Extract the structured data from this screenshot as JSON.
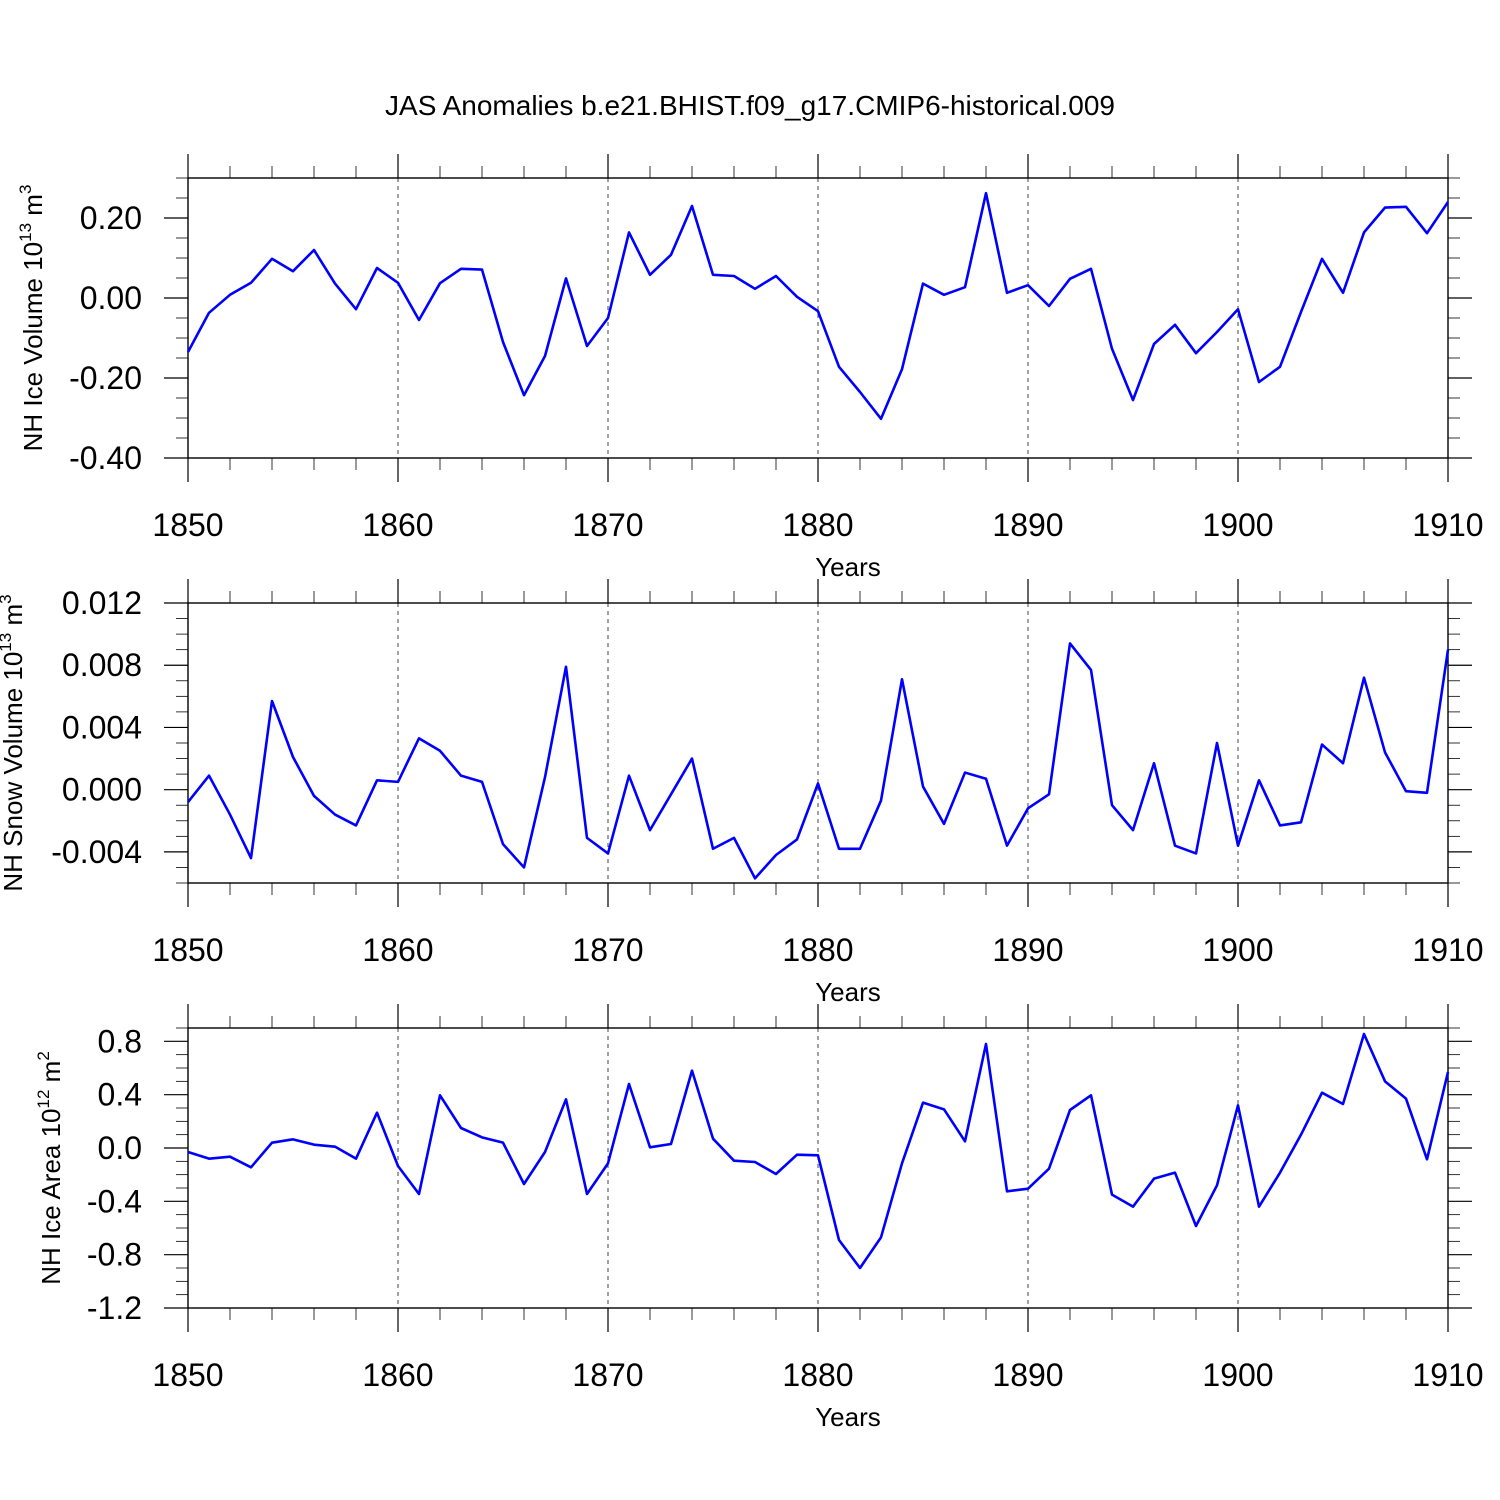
{
  "figure": {
    "title": "JAS Anomalies b.e21.BHIST.f09_g17.CMIP6-historical.009"
  },
  "chart_data": [
    {
      "type": "line",
      "id": "ice-volume",
      "title": "",
      "xlabel": "Years",
      "ylabel": "NH Ice Volume 10",
      "ylabel_sup": "13",
      "ylabel_unit": "m",
      "ylabel_unit_sup": "3",
      "xlim": [
        1850,
        1910
      ],
      "ylim": [
        -0.4,
        0.3
      ],
      "x_ticks": [
        1850,
        1860,
        1870,
        1880,
        1890,
        1900,
        1910
      ],
      "x_tick_labels": [
        "1850",
        "1860",
        "1870",
        "1880",
        "1890",
        "1900",
        "1910"
      ],
      "y_ticks": [
        -0.4,
        -0.2,
        0.0,
        0.2
      ],
      "y_tick_labels": [
        "-0.40",
        "-0.20",
        "0.00",
        "0.20"
      ],
      "y_minor_step": 0.05,
      "color": "#0000ff",
      "series": [
        {
          "name": "NH Ice Volume anomaly",
          "x": [
            1850,
            1851,
            1852,
            1853,
            1854,
            1855,
            1856,
            1857,
            1858,
            1859,
            1860,
            1861,
            1862,
            1863,
            1864,
            1865,
            1866,
            1867,
            1868,
            1869,
            1870,
            1871,
            1872,
            1873,
            1874,
            1875,
            1876,
            1877,
            1878,
            1879,
            1880,
            1881,
            1882,
            1883,
            1884,
            1885,
            1886,
            1887,
            1888,
            1889,
            1890,
            1891,
            1892,
            1893,
            1894,
            1895,
            1896,
            1897,
            1898,
            1899,
            1900,
            1901,
            1902,
            1903,
            1904,
            1905,
            1906,
            1907,
            1908,
            1909,
            1910
          ],
          "values": [
            -0.135,
            -0.037,
            0.008,
            0.038,
            0.098,
            0.067,
            0.12,
            0.036,
            -0.028,
            0.075,
            0.038,
            -0.055,
            0.037,
            0.073,
            0.071,
            -0.11,
            -0.243,
            -0.145,
            0.049,
            -0.12,
            -0.05,
            0.164,
            0.058,
            0.108,
            0.23,
            0.058,
            0.055,
            0.023,
            0.055,
            0.003,
            -0.033,
            -0.172,
            -0.235,
            -0.302,
            -0.178,
            0.036,
            0.008,
            0.027,
            0.262,
            0.013,
            0.032,
            -0.02,
            0.048,
            0.073,
            -0.127,
            -0.255,
            -0.115,
            -0.067,
            -0.138,
            -0.085,
            -0.028,
            -0.21,
            -0.172,
            -0.035,
            0.098,
            0.013,
            0.164,
            0.226,
            0.228,
            0.162,
            0.24
          ]
        }
      ]
    },
    {
      "type": "line",
      "id": "snow-volume",
      "title": "",
      "xlabel": "Years",
      "ylabel": "NH Snow Volume 10",
      "ylabel_sup": "13",
      "ylabel_unit": "m",
      "ylabel_unit_sup": "3",
      "xlim": [
        1850,
        1910
      ],
      "ylim": [
        -0.006,
        0.012
      ],
      "x_ticks": [
        1850,
        1860,
        1870,
        1880,
        1890,
        1900,
        1910
      ],
      "x_tick_labels": [
        "1850",
        "1860",
        "1870",
        "1880",
        "1890",
        "1900",
        "1910"
      ],
      "y_ticks": [
        -0.004,
        0.0,
        0.004,
        0.008,
        0.012
      ],
      "y_tick_labels": [
        "-0.004",
        "0.000",
        "0.004",
        "0.008",
        "0.012"
      ],
      "y_minor_step": 0.001,
      "color": "#0000ff",
      "series": [
        {
          "name": "NH Snow Volume anomaly",
          "x": [
            1850,
            1851,
            1852,
            1853,
            1854,
            1855,
            1856,
            1857,
            1858,
            1859,
            1860,
            1861,
            1862,
            1863,
            1864,
            1865,
            1866,
            1867,
            1868,
            1869,
            1870,
            1871,
            1872,
            1873,
            1874,
            1875,
            1876,
            1877,
            1878,
            1879,
            1880,
            1881,
            1882,
            1883,
            1884,
            1885,
            1886,
            1887,
            1888,
            1889,
            1890,
            1891,
            1892,
            1893,
            1894,
            1895,
            1896,
            1897,
            1898,
            1899,
            1900,
            1901,
            1902,
            1903,
            1904,
            1905,
            1906,
            1907,
            1908,
            1909,
            1910
          ],
          "values": [
            -0.0008,
            0.0009,
            -0.0016,
            -0.0044,
            0.0057,
            0.0021,
            -0.0004,
            -0.0016,
            -0.0023,
            0.0006,
            0.0005,
            0.0033,
            0.0025,
            0.0009,
            0.0005,
            -0.0035,
            -0.005,
            0.0008,
            0.0079,
            -0.0031,
            -0.0041,
            0.0009,
            -0.0026,
            -0.0003,
            0.002,
            -0.0038,
            -0.0031,
            -0.0057,
            -0.0042,
            -0.0032,
            0.0004,
            -0.0038,
            -0.0038,
            -0.0007,
            0.0071,
            0.0002,
            -0.0022,
            0.0011,
            0.0007,
            -0.0036,
            -0.0012,
            -0.0003,
            0.0094,
            0.0077,
            -0.001,
            -0.0026,
            0.0017,
            -0.0036,
            -0.0041,
            0.003,
            -0.0036,
            0.0006,
            -0.0023,
            -0.0021,
            0.0029,
            0.0017,
            0.0072,
            0.0024,
            -0.0001,
            -0.0002,
            0.009
          ]
        }
      ]
    },
    {
      "type": "line",
      "id": "ice-area",
      "title": "",
      "xlabel": "Years",
      "ylabel": "NH Ice Area 10",
      "ylabel_sup": "12",
      "ylabel_unit": "m",
      "ylabel_unit_sup": "2",
      "xlim": [
        1850,
        1910
      ],
      "ylim": [
        -1.2,
        0.9
      ],
      "x_ticks": [
        1850,
        1860,
        1870,
        1880,
        1890,
        1900,
        1910
      ],
      "x_tick_labels": [
        "1850",
        "1860",
        "1870",
        "1880",
        "1890",
        "1900",
        "1910"
      ],
      "y_ticks": [
        -1.2,
        -0.8,
        -0.4,
        0.0,
        0.4,
        0.8
      ],
      "y_tick_labels": [
        "-1.2",
        "-0.8",
        "-0.4",
        "0.0",
        "0.4",
        "0.8"
      ],
      "y_minor_step": 0.1,
      "color": "#0000ff",
      "series": [
        {
          "name": "NH Ice Area anomaly",
          "x": [
            1850,
            1851,
            1852,
            1853,
            1854,
            1855,
            1856,
            1857,
            1858,
            1859,
            1860,
            1861,
            1862,
            1863,
            1864,
            1865,
            1866,
            1867,
            1868,
            1869,
            1870,
            1871,
            1872,
            1873,
            1874,
            1875,
            1876,
            1877,
            1878,
            1879,
            1880,
            1881,
            1882,
            1883,
            1884,
            1885,
            1886,
            1887,
            1888,
            1889,
            1890,
            1891,
            1892,
            1893,
            1894,
            1895,
            1896,
            1897,
            1898,
            1899,
            1900,
            1901,
            1902,
            1903,
            1904,
            1905,
            1906,
            1907,
            1908,
            1909,
            1910
          ],
          "values": [
            -0.03,
            -0.08,
            -0.065,
            -0.145,
            0.04,
            0.065,
            0.025,
            0.01,
            -0.08,
            0.265,
            -0.135,
            -0.345,
            0.395,
            0.15,
            0.08,
            0.04,
            -0.27,
            -0.03,
            0.365,
            -0.345,
            -0.115,
            0.48,
            0.005,
            0.03,
            0.58,
            0.07,
            -0.095,
            -0.105,
            -0.195,
            -0.05,
            -0.055,
            -0.69,
            -0.9,
            -0.67,
            -0.115,
            0.34,
            0.29,
            0.05,
            0.78,
            -0.325,
            -0.305,
            -0.155,
            0.285,
            0.395,
            -0.35,
            -0.44,
            -0.23,
            -0.185,
            -0.585,
            -0.28,
            0.32,
            -0.44,
            -0.185,
            0.1,
            0.415,
            0.33,
            0.855,
            0.5,
            0.37,
            -0.085,
            0.57
          ]
        }
      ]
    }
  ]
}
